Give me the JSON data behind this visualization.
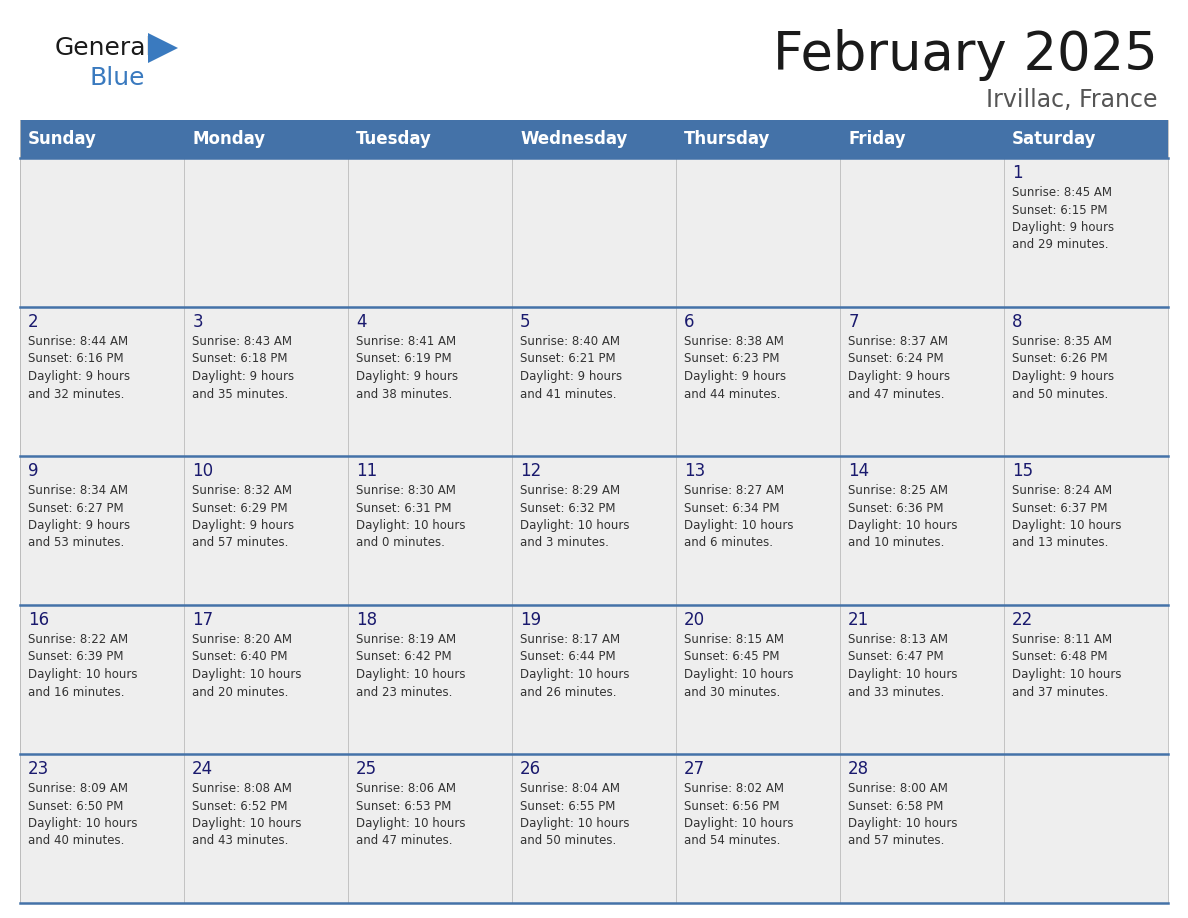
{
  "title": "February 2025",
  "subtitle": "Irvillac, France",
  "days_of_week": [
    "Sunday",
    "Monday",
    "Tuesday",
    "Wednesday",
    "Thursday",
    "Friday",
    "Saturday"
  ],
  "header_bg": "#4472a8",
  "header_text": "#ffffff",
  "row_bg": "#eeeeee",
  "cell_text_color": "#333333",
  "day_num_color": "#1a1a6e",
  "border_color": "#4472a8",
  "title_color": "#1a1a1a",
  "subtitle_color": "#555555",
  "logo_general_color": "#1a1a1a",
  "logo_blue_color": "#3a7abf",
  "calendar_data": [
    [
      null,
      null,
      null,
      null,
      null,
      null,
      {
        "day": 1,
        "sunrise": "8:45 AM",
        "sunset": "6:15 PM",
        "daylight": "9 hours\nand 29 minutes."
      }
    ],
    [
      {
        "day": 2,
        "sunrise": "8:44 AM",
        "sunset": "6:16 PM",
        "daylight": "9 hours\nand 32 minutes."
      },
      {
        "day": 3,
        "sunrise": "8:43 AM",
        "sunset": "6:18 PM",
        "daylight": "9 hours\nand 35 minutes."
      },
      {
        "day": 4,
        "sunrise": "8:41 AM",
        "sunset": "6:19 PM",
        "daylight": "9 hours\nand 38 minutes."
      },
      {
        "day": 5,
        "sunrise": "8:40 AM",
        "sunset": "6:21 PM",
        "daylight": "9 hours\nand 41 minutes."
      },
      {
        "day": 6,
        "sunrise": "8:38 AM",
        "sunset": "6:23 PM",
        "daylight": "9 hours\nand 44 minutes."
      },
      {
        "day": 7,
        "sunrise": "8:37 AM",
        "sunset": "6:24 PM",
        "daylight": "9 hours\nand 47 minutes."
      },
      {
        "day": 8,
        "sunrise": "8:35 AM",
        "sunset": "6:26 PM",
        "daylight": "9 hours\nand 50 minutes."
      }
    ],
    [
      {
        "day": 9,
        "sunrise": "8:34 AM",
        "sunset": "6:27 PM",
        "daylight": "9 hours\nand 53 minutes."
      },
      {
        "day": 10,
        "sunrise": "8:32 AM",
        "sunset": "6:29 PM",
        "daylight": "9 hours\nand 57 minutes."
      },
      {
        "day": 11,
        "sunrise": "8:30 AM",
        "sunset": "6:31 PM",
        "daylight": "10 hours\nand 0 minutes."
      },
      {
        "day": 12,
        "sunrise": "8:29 AM",
        "sunset": "6:32 PM",
        "daylight": "10 hours\nand 3 minutes."
      },
      {
        "day": 13,
        "sunrise": "8:27 AM",
        "sunset": "6:34 PM",
        "daylight": "10 hours\nand 6 minutes."
      },
      {
        "day": 14,
        "sunrise": "8:25 AM",
        "sunset": "6:36 PM",
        "daylight": "10 hours\nand 10 minutes."
      },
      {
        "day": 15,
        "sunrise": "8:24 AM",
        "sunset": "6:37 PM",
        "daylight": "10 hours\nand 13 minutes."
      }
    ],
    [
      {
        "day": 16,
        "sunrise": "8:22 AM",
        "sunset": "6:39 PM",
        "daylight": "10 hours\nand 16 minutes."
      },
      {
        "day": 17,
        "sunrise": "8:20 AM",
        "sunset": "6:40 PM",
        "daylight": "10 hours\nand 20 minutes."
      },
      {
        "day": 18,
        "sunrise": "8:19 AM",
        "sunset": "6:42 PM",
        "daylight": "10 hours\nand 23 minutes."
      },
      {
        "day": 19,
        "sunrise": "8:17 AM",
        "sunset": "6:44 PM",
        "daylight": "10 hours\nand 26 minutes."
      },
      {
        "day": 20,
        "sunrise": "8:15 AM",
        "sunset": "6:45 PM",
        "daylight": "10 hours\nand 30 minutes."
      },
      {
        "day": 21,
        "sunrise": "8:13 AM",
        "sunset": "6:47 PM",
        "daylight": "10 hours\nand 33 minutes."
      },
      {
        "day": 22,
        "sunrise": "8:11 AM",
        "sunset": "6:48 PM",
        "daylight": "10 hours\nand 37 minutes."
      }
    ],
    [
      {
        "day": 23,
        "sunrise": "8:09 AM",
        "sunset": "6:50 PM",
        "daylight": "10 hours\nand 40 minutes."
      },
      {
        "day": 24,
        "sunrise": "8:08 AM",
        "sunset": "6:52 PM",
        "daylight": "10 hours\nand 43 minutes."
      },
      {
        "day": 25,
        "sunrise": "8:06 AM",
        "sunset": "6:53 PM",
        "daylight": "10 hours\nand 47 minutes."
      },
      {
        "day": 26,
        "sunrise": "8:04 AM",
        "sunset": "6:55 PM",
        "daylight": "10 hours\nand 50 minutes."
      },
      {
        "day": 27,
        "sunrise": "8:02 AM",
        "sunset": "6:56 PM",
        "daylight": "10 hours\nand 54 minutes."
      },
      {
        "day": 28,
        "sunrise": "8:00 AM",
        "sunset": "6:58 PM",
        "daylight": "10 hours\nand 57 minutes."
      },
      null
    ]
  ]
}
